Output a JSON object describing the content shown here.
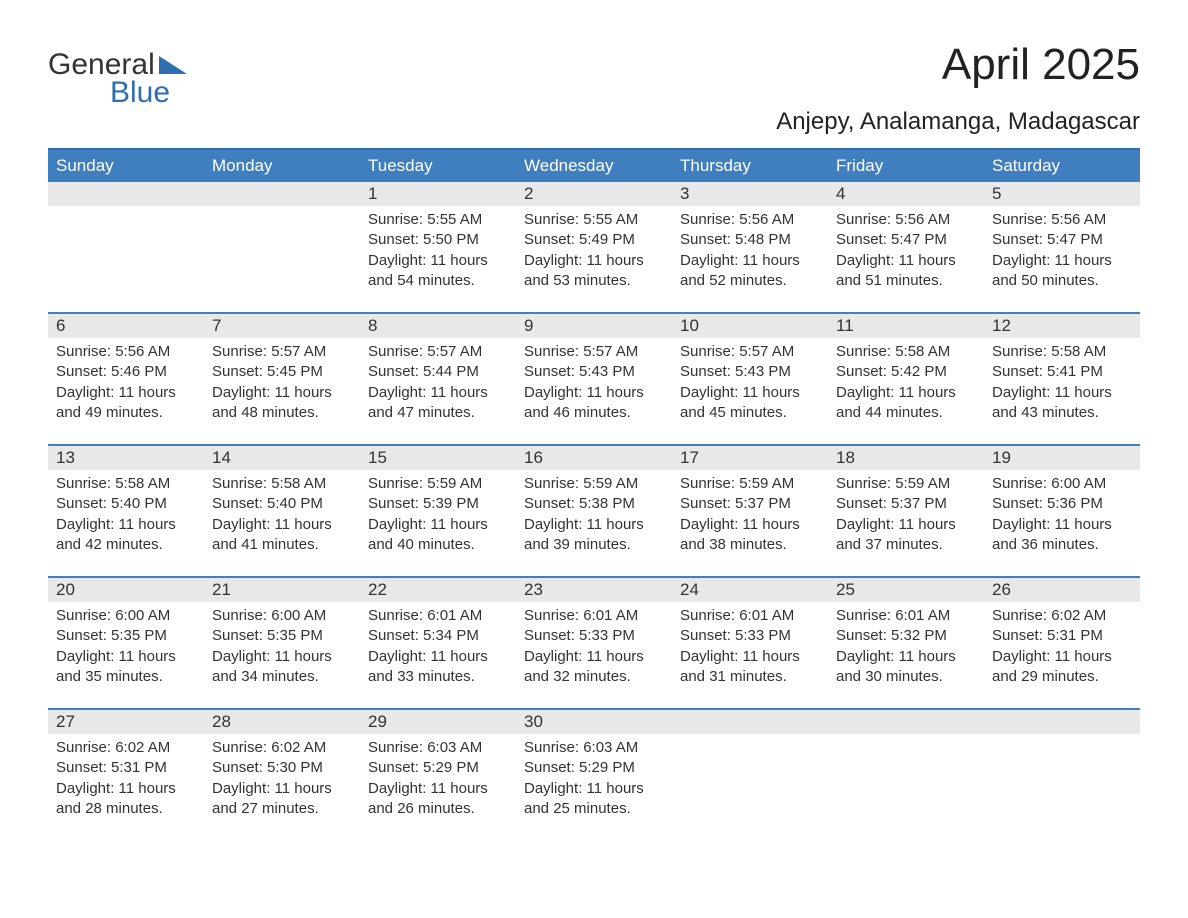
{
  "logo": {
    "word1": "General",
    "word2": "Blue"
  },
  "title": "April 2025",
  "location": "Anjepy, Analamanga, Madagascar",
  "day_labels": [
    "Sunday",
    "Monday",
    "Tuesday",
    "Wednesday",
    "Thursday",
    "Friday",
    "Saturday"
  ],
  "colors": {
    "brand_blue": "#2f6fb0",
    "header_blue": "#3f7fbf",
    "row_gray": "#e8e8e8",
    "text": "#333333",
    "bg": "#ffffff"
  },
  "fonts": {
    "title_size_pt": 33,
    "location_size_pt": 18,
    "day_header_size_pt": 13,
    "body_size_pt": 11
  },
  "calendar": {
    "type": "table",
    "first_weekday_index": 2,
    "days_in_month": 30,
    "days": [
      {
        "n": 1,
        "sunrise": "5:55 AM",
        "sunset": "5:50 PM",
        "daylight": "11 hours and 54 minutes."
      },
      {
        "n": 2,
        "sunrise": "5:55 AM",
        "sunset": "5:49 PM",
        "daylight": "11 hours and 53 minutes."
      },
      {
        "n": 3,
        "sunrise": "5:56 AM",
        "sunset": "5:48 PM",
        "daylight": "11 hours and 52 minutes."
      },
      {
        "n": 4,
        "sunrise": "5:56 AM",
        "sunset": "5:47 PM",
        "daylight": "11 hours and 51 minutes."
      },
      {
        "n": 5,
        "sunrise": "5:56 AM",
        "sunset": "5:47 PM",
        "daylight": "11 hours and 50 minutes."
      },
      {
        "n": 6,
        "sunrise": "5:56 AM",
        "sunset": "5:46 PM",
        "daylight": "11 hours and 49 minutes."
      },
      {
        "n": 7,
        "sunrise": "5:57 AM",
        "sunset": "5:45 PM",
        "daylight": "11 hours and 48 minutes."
      },
      {
        "n": 8,
        "sunrise": "5:57 AM",
        "sunset": "5:44 PM",
        "daylight": "11 hours and 47 minutes."
      },
      {
        "n": 9,
        "sunrise": "5:57 AM",
        "sunset": "5:43 PM",
        "daylight": "11 hours and 46 minutes."
      },
      {
        "n": 10,
        "sunrise": "5:57 AM",
        "sunset": "5:43 PM",
        "daylight": "11 hours and 45 minutes."
      },
      {
        "n": 11,
        "sunrise": "5:58 AM",
        "sunset": "5:42 PM",
        "daylight": "11 hours and 44 minutes."
      },
      {
        "n": 12,
        "sunrise": "5:58 AM",
        "sunset": "5:41 PM",
        "daylight": "11 hours and 43 minutes."
      },
      {
        "n": 13,
        "sunrise": "5:58 AM",
        "sunset": "5:40 PM",
        "daylight": "11 hours and 42 minutes."
      },
      {
        "n": 14,
        "sunrise": "5:58 AM",
        "sunset": "5:40 PM",
        "daylight": "11 hours and 41 minutes."
      },
      {
        "n": 15,
        "sunrise": "5:59 AM",
        "sunset": "5:39 PM",
        "daylight": "11 hours and 40 minutes."
      },
      {
        "n": 16,
        "sunrise": "5:59 AM",
        "sunset": "5:38 PM",
        "daylight": "11 hours and 39 minutes."
      },
      {
        "n": 17,
        "sunrise": "5:59 AM",
        "sunset": "5:37 PM",
        "daylight": "11 hours and 38 minutes."
      },
      {
        "n": 18,
        "sunrise": "5:59 AM",
        "sunset": "5:37 PM",
        "daylight": "11 hours and 37 minutes."
      },
      {
        "n": 19,
        "sunrise": "6:00 AM",
        "sunset": "5:36 PM",
        "daylight": "11 hours and 36 minutes."
      },
      {
        "n": 20,
        "sunrise": "6:00 AM",
        "sunset": "5:35 PM",
        "daylight": "11 hours and 35 minutes."
      },
      {
        "n": 21,
        "sunrise": "6:00 AM",
        "sunset": "5:35 PM",
        "daylight": "11 hours and 34 minutes."
      },
      {
        "n": 22,
        "sunrise": "6:01 AM",
        "sunset": "5:34 PM",
        "daylight": "11 hours and 33 minutes."
      },
      {
        "n": 23,
        "sunrise": "6:01 AM",
        "sunset": "5:33 PM",
        "daylight": "11 hours and 32 minutes."
      },
      {
        "n": 24,
        "sunrise": "6:01 AM",
        "sunset": "5:33 PM",
        "daylight": "11 hours and 31 minutes."
      },
      {
        "n": 25,
        "sunrise": "6:01 AM",
        "sunset": "5:32 PM",
        "daylight": "11 hours and 30 minutes."
      },
      {
        "n": 26,
        "sunrise": "6:02 AM",
        "sunset": "5:31 PM",
        "daylight": "11 hours and 29 minutes."
      },
      {
        "n": 27,
        "sunrise": "6:02 AM",
        "sunset": "5:31 PM",
        "daylight": "11 hours and 28 minutes."
      },
      {
        "n": 28,
        "sunrise": "6:02 AM",
        "sunset": "5:30 PM",
        "daylight": "11 hours and 27 minutes."
      },
      {
        "n": 29,
        "sunrise": "6:03 AM",
        "sunset": "5:29 PM",
        "daylight": "11 hours and 26 minutes."
      },
      {
        "n": 30,
        "sunrise": "6:03 AM",
        "sunset": "5:29 PM",
        "daylight": "11 hours and 25 minutes."
      }
    ],
    "labels": {
      "sunrise_prefix": "Sunrise: ",
      "sunset_prefix": "Sunset: ",
      "daylight_prefix": "Daylight: "
    }
  }
}
